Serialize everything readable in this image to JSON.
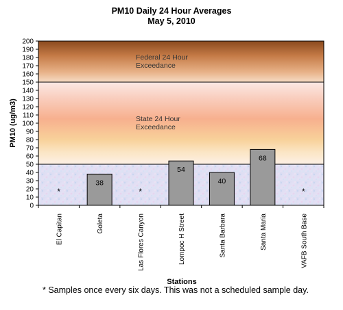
{
  "chart_data": {
    "type": "bar",
    "title": "PM10 Daily 24 Hour Averages",
    "subtitle": "May 5, 2010",
    "xlabel": "Stations",
    "ylabel": "PM10 (ug/m3)",
    "ylim": [
      0,
      200
    ],
    "ytick_step": 10,
    "categories": [
      "El Capitan",
      "Goleta",
      "Las Flores Canyon",
      "Lompoc H Street",
      "Santa Barbara",
      "Santa Maria",
      "VAFB South Base"
    ],
    "values": [
      null,
      38,
      null,
      54,
      40,
      68,
      null
    ],
    "value_labels": [
      "*",
      "38",
      "*",
      "54",
      "40",
      "68",
      "*"
    ],
    "bar_color": "#9a9a9a",
    "bands": [
      {
        "label_lines": [
          "Federal 24 Hour",
          "Exceedance"
        ],
        "from": 150,
        "to": 200
      },
      {
        "label_lines": [
          "State 24 Hour",
          "Exceedance"
        ],
        "from": 50,
        "to": 150
      }
    ],
    "threshold_lines": [
      150,
      50
    ]
  },
  "footnote": "* Samples once every six days.  This was not a scheduled sample day."
}
